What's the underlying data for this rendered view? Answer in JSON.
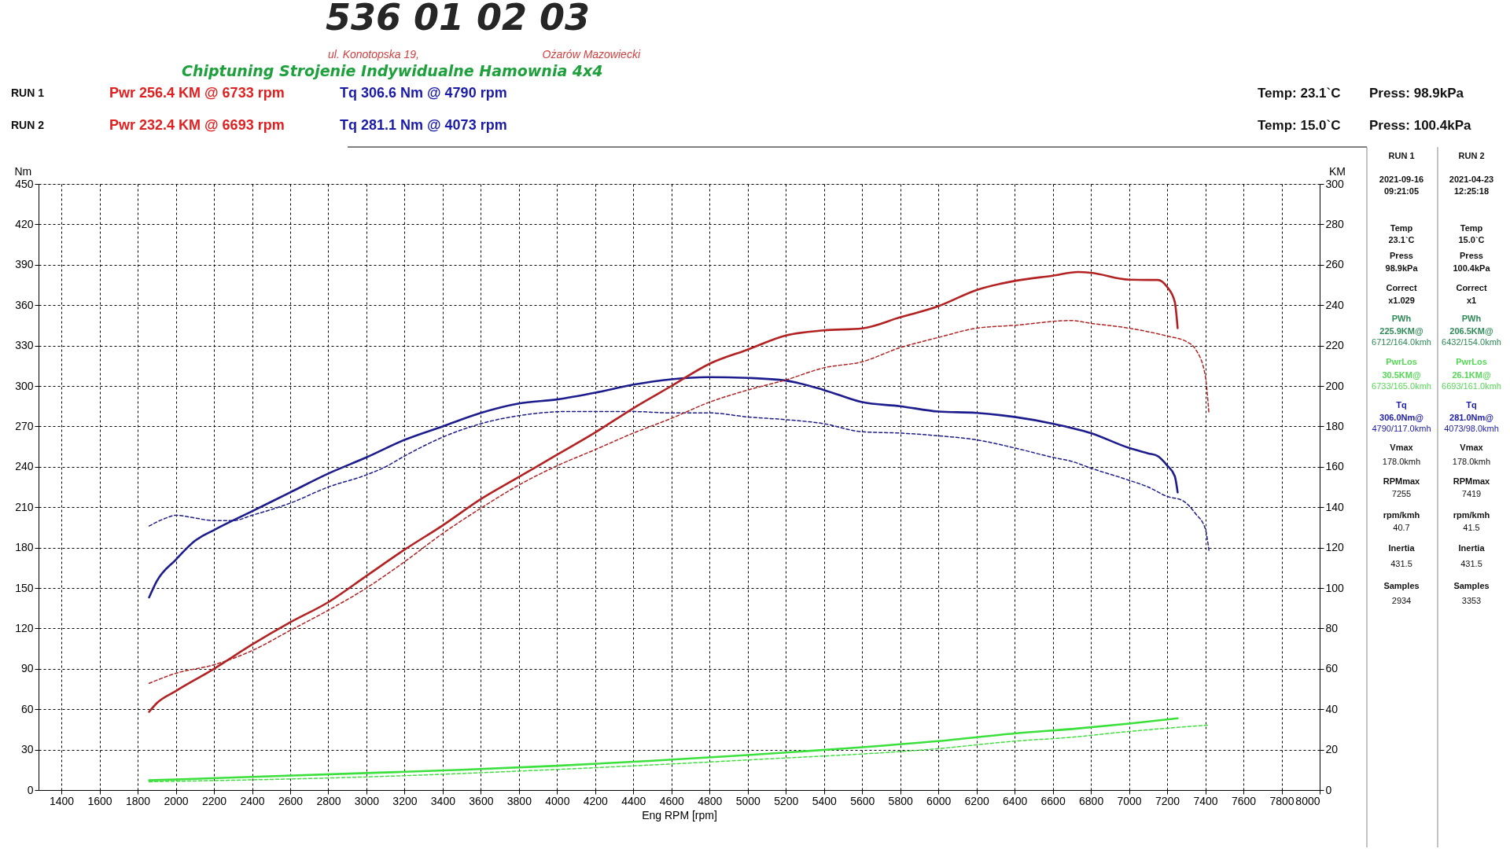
{
  "chart_data": {
    "type": "line",
    "xlabel": "Eng RPM [rpm]",
    "ylabel": "Nm",
    "y2label": "KM",
    "xlim": [
      1280,
      8000
    ],
    "xticks": [
      1400,
      1600,
      1800,
      2000,
      2200,
      2400,
      2600,
      2800,
      3000,
      3200,
      3400,
      3600,
      3800,
      4000,
      4200,
      4400,
      4600,
      4800,
      5000,
      5200,
      5400,
      5600,
      5800,
      6000,
      6200,
      6400,
      6600,
      6800,
      7000,
      7200,
      7400,
      7600,
      7800,
      8000
    ],
    "ylim": [
      0,
      450
    ],
    "yticks": [
      0,
      30,
      60,
      90,
      120,
      150,
      180,
      210,
      240,
      270,
      300,
      330,
      360,
      390,
      420,
      450
    ],
    "y2lim": [
      0,
      300
    ],
    "y2ticks": [
      0,
      20,
      40,
      60,
      80,
      100,
      120,
      140,
      160,
      180,
      200,
      220,
      240,
      260,
      280,
      300
    ],
    "grid": true,
    "series": [
      {
        "color": "#1c1c8c",
        "line_style": "solid",
        "x": [
          1860,
          1900,
          2000,
          2100,
          2200,
          2400,
          2600,
          2800,
          3000,
          3200,
          3400,
          3600,
          3800,
          4000,
          4200,
          4400,
          4600,
          4790,
          5000,
          5200,
          5400,
          5600,
          5800,
          6000,
          6200,
          6400,
          6600,
          6800,
          7000,
          7100,
          7150,
          7200,
          7240,
          7255
        ],
        "values": [
          143,
          155,
          171,
          185,
          193,
          207,
          221,
          235,
          247,
          260,
          270,
          280,
          287,
          290,
          295,
          301,
          305,
          306.6,
          306,
          304,
          297,
          288,
          285,
          281,
          280,
          277,
          272,
          265,
          254,
          250,
          248,
          241,
          233,
          221
        ]
      },
      {
        "color": "#1c1c8c",
        "line_style": "dashed",
        "x": [
          1860,
          1950,
          2000,
          2100,
          2200,
          2300,
          2400,
          2600,
          2800,
          3000,
          3100,
          3200,
          3400,
          3600,
          3800,
          4073,
          4200,
          4400,
          4600,
          4800,
          5000,
          5200,
          5400,
          5600,
          5800,
          6000,
          6200,
          6400,
          6600,
          6700,
          6800,
          7000,
          7100,
          7200,
          7280,
          7350,
          7400,
          7419
        ],
        "values": [
          196,
          202,
          204,
          202,
          200,
          200,
          204,
          213,
          225,
          234,
          240,
          248,
          262,
          272,
          278,
          281.1,
          281,
          281,
          280,
          280,
          277,
          275,
          272,
          266,
          265,
          263,
          260,
          254,
          247,
          244,
          239,
          230,
          225,
          218,
          215,
          205,
          194,
          178
        ]
      },
      {
        "color": "#b22222",
        "line_style": "solid",
        "axis": "y2",
        "x": [
          1860,
          1900,
          2000,
          2200,
          2400,
          2600,
          2800,
          3000,
          3200,
          3400,
          3600,
          3800,
          4000,
          4200,
          4400,
          4600,
          4800,
          5000,
          5200,
          5400,
          5600,
          5800,
          6000,
          6200,
          6400,
          6600,
          6733,
          6800,
          7000,
          7100,
          7150,
          7200,
          7240,
          7255
        ],
        "values": [
          38.7,
          43,
          49,
          60,
          72,
          83,
          93,
          106,
          119,
          131,
          144,
          155,
          166,
          177,
          189,
          200,
          211,
          218,
          225,
          227.5,
          228.5,
          234,
          239.5,
          247.5,
          252,
          254.6,
          256.4,
          256,
          252.6,
          252.5,
          252.5,
          249,
          241.6,
          228.6
        ]
      },
      {
        "color": "#b22222",
        "line_style": "dashed",
        "axis": "y2",
        "x": [
          1860,
          2000,
          2200,
          2400,
          2600,
          2800,
          3000,
          3200,
          3400,
          3600,
          3800,
          4000,
          4200,
          4400,
          4600,
          4800,
          5000,
          5200,
          5400,
          5600,
          5800,
          6000,
          6200,
          6400,
          6693,
          6800,
          7000,
          7200,
          7300,
          7350,
          7400,
          7419
        ],
        "values": [
          52.8,
          57.8,
          62,
          69,
          79,
          89,
          100,
          113,
          127,
          139.5,
          151,
          160.5,
          168.5,
          176.7,
          184,
          192,
          198,
          203,
          209,
          212,
          219,
          224,
          228.6,
          230,
          232.4,
          231,
          228.6,
          224.7,
          222,
          218,
          205,
          186.5
        ]
      },
      {
        "color": "#3ce03c",
        "line_style": "solid",
        "axis": "y2",
        "x": [
          1860,
          2400,
          3000,
          3500,
          4000,
          4500,
          5000,
          5500,
          6000,
          6400,
          6733,
          7000,
          7255
        ],
        "values": [
          4.8,
          6.5,
          8.4,
          10,
          12,
          14.5,
          17.3,
          20.5,
          24.2,
          28,
          30.5,
          32.9,
          35.5
        ]
      },
      {
        "color": "#3ce03c",
        "line_style": "dashed",
        "axis": "y2",
        "x": [
          1860,
          3000,
          4000,
          5000,
          6000,
          6400,
          6693,
          7000,
          7419
        ],
        "values": [
          4.1,
          6.5,
          10.2,
          14.9,
          20.5,
          24.2,
          26.1,
          29,
          32.2
        ]
      }
    ],
    "annotations": [
      "536 01 02 03",
      "ul. Konotopska 19,",
      "Ożarów Mazowiecki",
      "Chiptuning Strojenie Indywidualne Hamownia 4x4",
      "RUN 1",
      "Pwr 256.4 KM @ 6733 rpm",
      "Tq 306.6 Nm @ 4790 rpm",
      "Temp: 23.1`C",
      "Press: 98.9kPa",
      "RUN 2",
      "Pwr 232.4 KM @ 6693 rpm",
      "Tq 281.1 Nm @ 4073 rpm",
      "Temp: 15.0`C",
      "Press: 100.4kPa",
      "RUN 1",
      "2021-09-16",
      "09:21:05",
      "Temp",
      "23.1`C",
      "Press",
      "98.9kPa",
      "Correct",
      "x1.029",
      "PWh",
      "225.9KM@",
      "6712/164.0kmh",
      "PwrLos",
      "30.5KM@",
      "6733/165.0kmh",
      "Tq",
      "306.0Nm@",
      "4790/117.0kmh",
      "Vmax",
      "178.0kmh",
      "RPMmax",
      "7255",
      "rpm/kmh",
      "40.7",
      "Inertia",
      "431.5",
      "Samples",
      "2934",
      "RUN 2",
      "2021-04-23",
      "12:25:18",
      "Temp",
      "15.0`C",
      "Press",
      "100.4kPa",
      "Correct",
      "x1",
      "PWh",
      "206.5KM@",
      "6432/154.0kmh",
      "PwrLos",
      "26.1KM@",
      "6693/161.0kmh",
      "Tq",
      "281.0Nm@",
      "4073/98.0kmh",
      "Vmax",
      "178.0kmh",
      "RPMmax",
      "7419",
      "rpm/kmh",
      "41.5",
      "Inertia",
      "431.5",
      "Samples",
      "3353"
    ]
  }
}
